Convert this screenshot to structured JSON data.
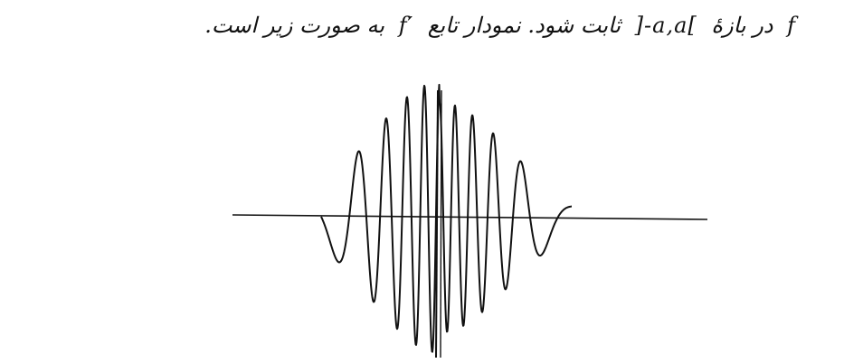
{
  "statement": {
    "function_name": "f",
    "part1": "در بازهٔ",
    "interval": "]-a,a[",
    "part2": "ثابت شود. نمودار تابع",
    "derivative_name": "f′",
    "part3": "به صورت زیر است."
  },
  "graph": {
    "description_shape": "oscillating wave packet",
    "ink_color": "#111111"
  }
}
